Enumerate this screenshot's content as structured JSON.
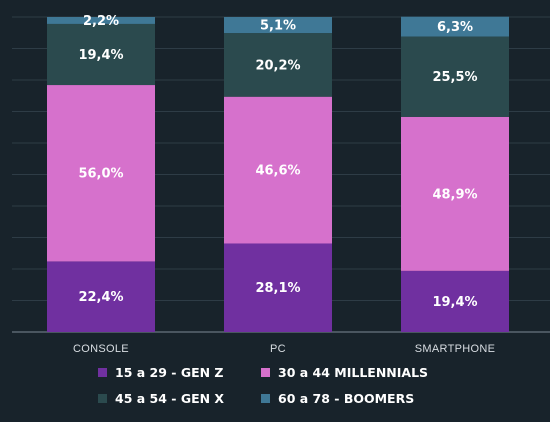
{
  "chart_data": {
    "type": "bar",
    "stacked": true,
    "categories": [
      "CONSOLE",
      "PC",
      "SMARTPHONE"
    ],
    "series": [
      {
        "name": "15 a 29 - GEN Z",
        "color": "#7030a0",
        "values": [
          22.4,
          28.1,
          19.4
        ],
        "labels": [
          "22,4%",
          "28,1%",
          "19,4%"
        ]
      },
      {
        "name": "30 a 44 MILLENNIALS",
        "color": "#d671cc",
        "values": [
          56.0,
          46.6,
          48.9
        ],
        "labels": [
          "56,0%",
          "46,6%",
          "48,9%"
        ]
      },
      {
        "name": "45 a 54 - GEN X",
        "color": "#2b4a4e",
        "values": [
          19.4,
          20.2,
          25.5
        ],
        "labels": [
          "19,4%",
          "20,2%",
          "25,5%"
        ]
      },
      {
        "name": "60 a 78 - BOOMERS",
        "color": "#3f7896",
        "values": [
          2.2,
          5.1,
          6.3
        ],
        "labels": [
          "2,2%",
          "5,1%",
          "6,3%"
        ]
      }
    ],
    "ylim": [
      0,
      100
    ],
    "grid": true,
    "legend_position": "bottom"
  },
  "colors": {
    "background": "#18232b",
    "grid": "#2e3c46"
  }
}
